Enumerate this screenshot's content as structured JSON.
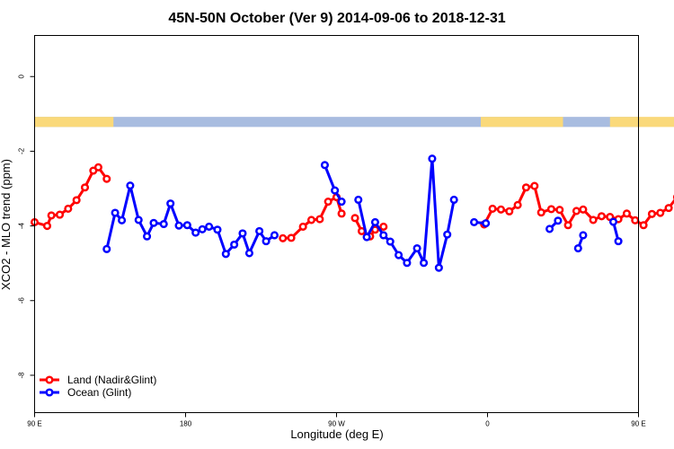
{
  "chart_data": {
    "type": "line",
    "title": "45N-50N October (Ver 9)   2014-09-06 to 2018-12-31",
    "xlabel": "Longitude (deg E)",
    "ylabel": "XCO2 - MLO trend (ppm)",
    "xlim": [
      90,
      450
    ],
    "ylim": [
      -9.0,
      1.1
    ],
    "x_ticks": [
      {
        "value": 90,
        "label": "90 E"
      },
      {
        "value": 180,
        "label": "180"
      },
      {
        "value": 270,
        "label": "90 W"
      },
      {
        "value": 360,
        "label": "0"
      },
      {
        "value": 450,
        "label": "90 E"
      },
      {
        "value": 540,
        "label": "180"
      }
    ],
    "y_ticks": [
      {
        "value": 0,
        "label": "0"
      },
      {
        "value": -2,
        "label": "-2"
      },
      {
        "value": -4,
        "label": "-4"
      },
      {
        "value": -6,
        "label": "-6"
      },
      {
        "value": -8,
        "label": "-8"
      }
    ],
    "legend_position": "bottom-left",
    "land_ocean_strip": {
      "y_top": -1.08,
      "y_bottom": -1.35,
      "land_color": "#FAD97A",
      "ocean_color": "#A8BCE0"
    },
    "series": [
      {
        "name": "Land (Nadir&Glint)",
        "color": "#FF0000",
        "segments": [
          {
            "x": [
              90,
              97.5,
              100,
              105,
              110,
              115,
              120,
              125,
              128,
              133
            ],
            "y": [
              -3.9,
              -4.0,
              -3.72,
              -3.7,
              -3.54,
              -3.31,
              -2.97,
              -2.52,
              -2.43,
              -2.74
            ]
          },
          {
            "x": [
              238,
              243,
              250,
              255,
              260,
              265,
              270,
              273
            ],
            "y": [
              -4.33,
              -4.32,
              -4.02,
              -3.84,
              -3.82,
              -3.35,
              -3.23,
              -3.67
            ]
          },
          {
            "x": [
              281,
              285,
              290,
              293,
              298
            ],
            "y": [
              -3.79,
              -4.14,
              -4.28,
              -4.1,
              -4.02
            ]
          },
          {
            "x": [
              358,
              363,
              368,
              373,
              378,
              383,
              388,
              392,
              398,
              403,
              408,
              413,
              417,
              423,
              428,
              433,
              438,
              443,
              448,
              453,
              458,
              463,
              468,
              473,
              478,
              483,
              488,
              493
            ],
            "y": [
              -3.96,
              -3.54,
              -3.56,
              -3.61,
              -3.44,
              -2.97,
              -2.93,
              -3.64,
              -3.55,
              -3.57,
              -3.98,
              -3.6,
              -3.56,
              -3.84,
              -3.74,
              -3.76,
              -3.82,
              -3.67,
              -3.85,
              -3.98,
              -3.68,
              -3.65,
              -3.52,
              -3.23,
              -2.95,
              -2.53,
              -2.43,
              -2.74
            ]
          }
        ]
      },
      {
        "name": "Ocean (Glint)",
        "color": "#0000FF",
        "segments": [
          {
            "x": [
              133,
              138,
              142,
              147,
              152,
              157,
              161,
              167,
              171,
              176,
              181,
              186,
              190,
              194,
              199,
              204,
              209,
              214,
              218,
              224,
              228,
              233
            ],
            "y": [
              -4.62,
              -3.65,
              -3.85,
              -2.92,
              -3.84,
              -4.28,
              -3.92,
              -3.95,
              -3.4,
              -3.99,
              -3.98,
              -4.18,
              -4.09,
              -4.02,
              -4.1,
              -4.75,
              -4.5,
              -4.2,
              -4.73,
              -4.14,
              -4.41,
              -4.25
            ]
          },
          {
            "x": [
              263,
              269,
              273
            ],
            "y": [
              -2.37,
              -3.05,
              -3.35
            ]
          },
          {
            "x": [
              283,
              288,
              293,
              298,
              302,
              307,
              312,
              318,
              322,
              327,
              331,
              336,
              340
            ],
            "y": [
              -3.3,
              -4.3,
              -3.9,
              -4.25,
              -4.42,
              -4.78,
              -4.99,
              -4.6,
              -4.99,
              -2.2,
              -5.12,
              -4.23,
              -3.3
            ]
          },
          {
            "x": [
              352,
              359
            ],
            "y": [
              -3.9,
              -3.93
            ]
          },
          {
            "x": [
              397,
              402
            ],
            "y": [
              -4.08,
              -3.86
            ]
          },
          {
            "x": [
              414,
              417
            ],
            "y": [
              -4.6,
              -4.25
            ]
          },
          {
            "x": [
              435,
              438
            ],
            "y": [
              -3.89,
              -4.41
            ]
          }
        ]
      }
    ]
  }
}
